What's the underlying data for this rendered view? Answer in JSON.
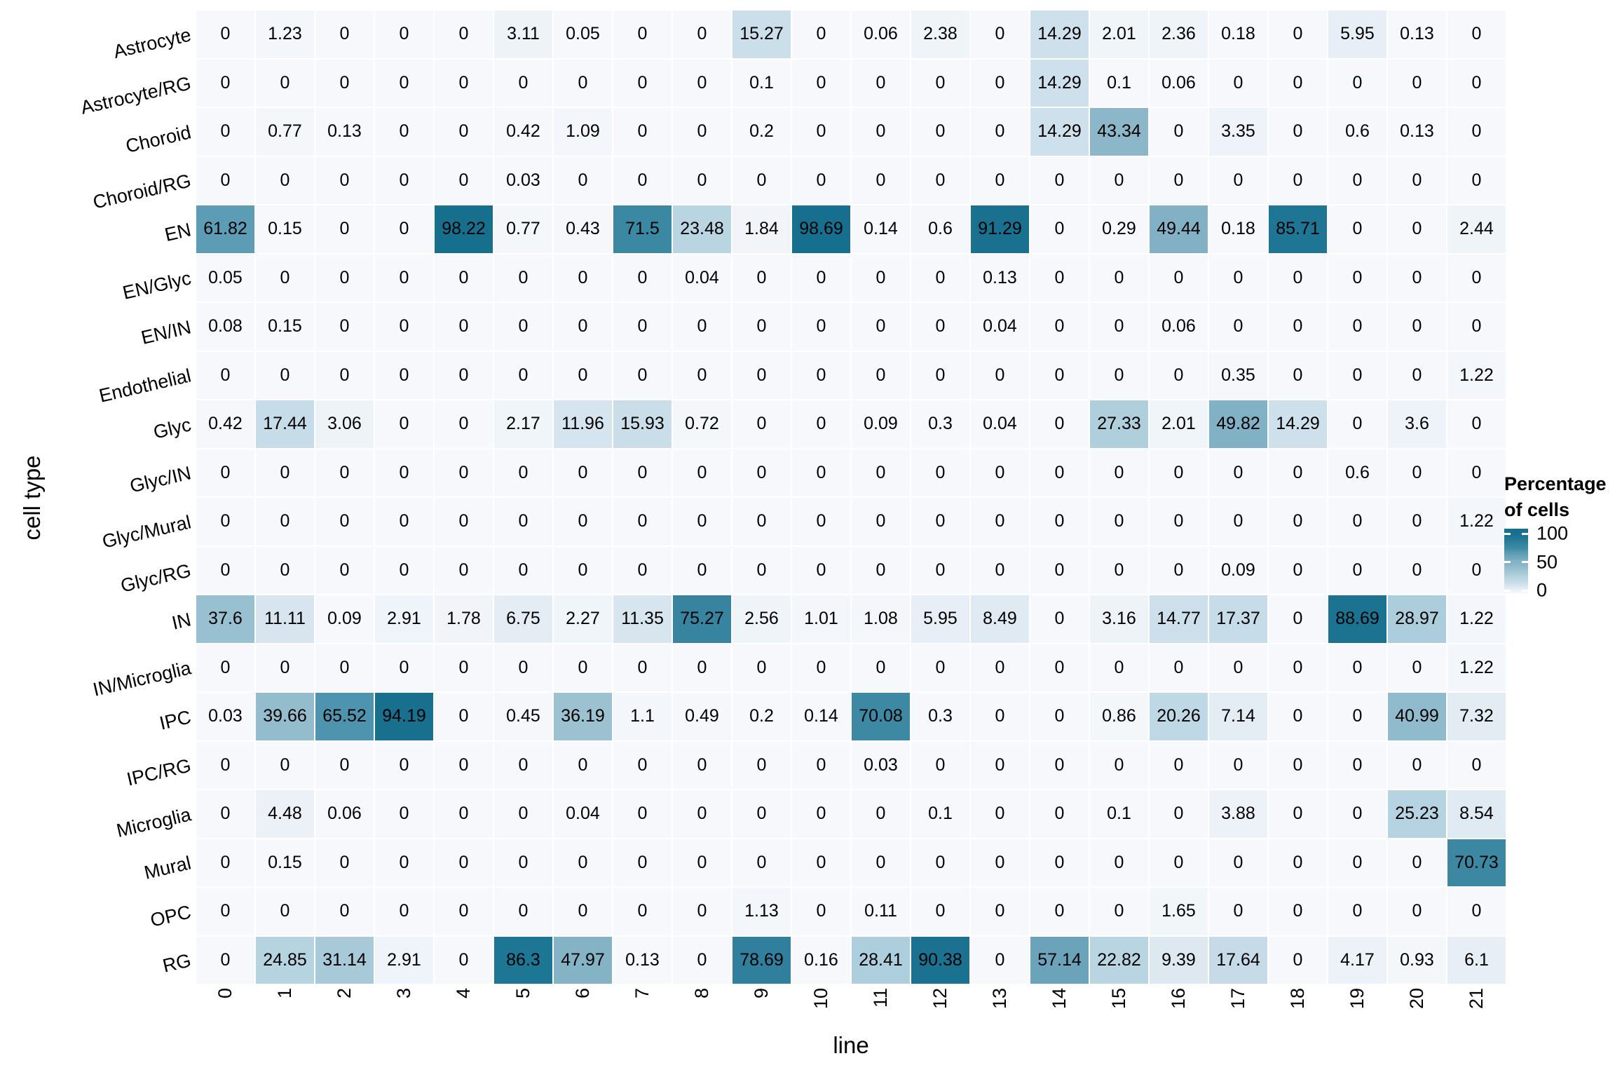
{
  "chart_data": {
    "type": "heatmap",
    "title": "",
    "xlabel": "line",
    "ylabel": "cell type",
    "x_categories": [
      "0",
      "1",
      "2",
      "3",
      "4",
      "5",
      "6",
      "7",
      "8",
      "9",
      "10",
      "11",
      "12",
      "13",
      "14",
      "15",
      "16",
      "17",
      "18",
      "19",
      "20",
      "21"
    ],
    "y_categories": [
      "Astrocyte",
      "Astrocyte/RG",
      "Choroid",
      "Choroid/RG",
      "EN",
      "EN/Glyc",
      "EN/IN",
      "Endothelial",
      "Glyc",
      "Glyc/IN",
      "Glyc/Mural",
      "Glyc/RG",
      "IN",
      "IN/Microglia",
      "IPC",
      "IPC/RG",
      "Microglia",
      "Mural",
      "OPC",
      "RG"
    ],
    "values": [
      [
        0,
        1.23,
        0,
        0,
        0,
        3.11,
        0.05,
        0,
        0,
        15.27,
        0,
        0.06,
        2.38,
        0,
        14.29,
        2.01,
        2.36,
        0.18,
        0,
        5.95,
        0.13,
        0
      ],
      [
        0,
        0,
        0,
        0,
        0,
        0,
        0,
        0,
        0,
        0.1,
        0,
        0,
        0,
        0,
        14.29,
        0.1,
        0.06,
        0,
        0,
        0,
        0,
        0
      ],
      [
        0,
        0.77,
        0.13,
        0,
        0,
        0.42,
        1.09,
        0,
        0,
        0.2,
        0,
        0,
        0,
        0,
        14.29,
        43.34,
        0,
        3.35,
        0,
        0.6,
        0.13,
        0
      ],
      [
        0,
        0,
        0,
        0,
        0,
        0.03,
        0,
        0,
        0,
        0,
        0,
        0,
        0,
        0,
        0,
        0,
        0,
        0,
        0,
        0,
        0,
        0
      ],
      [
        61.82,
        0.15,
        0,
        0,
        98.22,
        0.77,
        0.43,
        71.5,
        23.48,
        1.84,
        98.69,
        0.14,
        0.6,
        91.29,
        0,
        0.29,
        49.44,
        0.18,
        85.71,
        0,
        0,
        2.44
      ],
      [
        0.05,
        0,
        0,
        0,
        0,
        0,
        0,
        0,
        0.04,
        0,
        0,
        0,
        0,
        0.13,
        0,
        0,
        0,
        0,
        0,
        0,
        0,
        0
      ],
      [
        0.08,
        0.15,
        0,
        0,
        0,
        0,
        0,
        0,
        0,
        0,
        0,
        0,
        0,
        0.04,
        0,
        0,
        0.06,
        0,
        0,
        0,
        0,
        0
      ],
      [
        0,
        0,
        0,
        0,
        0,
        0,
        0,
        0,
        0,
        0,
        0,
        0,
        0,
        0,
        0,
        0,
        0,
        0.35,
        0,
        0,
        0,
        1.22
      ],
      [
        0.42,
        17.44,
        3.06,
        0,
        0,
        2.17,
        11.96,
        15.93,
        0.72,
        0,
        0,
        0.09,
        0.3,
        0.04,
        0,
        27.33,
        2.01,
        49.82,
        14.29,
        0,
        3.6,
        0
      ],
      [
        0,
        0,
        0,
        0,
        0,
        0,
        0,
        0,
        0,
        0,
        0,
        0,
        0,
        0,
        0,
        0,
        0,
        0,
        0,
        0.6,
        0,
        0
      ],
      [
        0,
        0,
        0,
        0,
        0,
        0,
        0,
        0,
        0,
        0,
        0,
        0,
        0,
        0,
        0,
        0,
        0,
        0,
        0,
        0,
        0,
        1.22
      ],
      [
        0,
        0,
        0,
        0,
        0,
        0,
        0,
        0,
        0,
        0,
        0,
        0,
        0,
        0,
        0,
        0,
        0,
        0.09,
        0,
        0,
        0,
        0
      ],
      [
        37.6,
        11.11,
        0.09,
        2.91,
        1.78,
        6.75,
        2.27,
        11.35,
        75.27,
        2.56,
        1.01,
        1.08,
        5.95,
        8.49,
        0,
        3.16,
        14.77,
        17.37,
        0,
        88.69,
        28.97,
        1.22
      ],
      [
        0,
        0,
        0,
        0,
        0,
        0,
        0,
        0,
        0,
        0,
        0,
        0,
        0,
        0,
        0,
        0,
        0,
        0,
        0,
        0,
        0,
        1.22
      ],
      [
        0.03,
        39.66,
        65.52,
        94.19,
        0,
        0.45,
        36.19,
        1.1,
        0.49,
        0.2,
        0.14,
        70.08,
        0.3,
        0,
        0,
        0.86,
        20.26,
        7.14,
        0,
        0,
        40.99,
        7.32
      ],
      [
        0,
        0,
        0,
        0,
        0,
        0,
        0,
        0,
        0,
        0,
        0,
        0.03,
        0,
        0,
        0,
        0,
        0,
        0,
        0,
        0,
        0,
        0
      ],
      [
        0,
        4.48,
        0.06,
        0,
        0,
        0,
        0.04,
        0,
        0,
        0,
        0,
        0,
        0.1,
        0,
        0,
        0.1,
        0,
        3.88,
        0,
        0,
        25.23,
        8.54
      ],
      [
        0,
        0.15,
        0,
        0,
        0,
        0,
        0,
        0,
        0,
        0,
        0,
        0,
        0,
        0,
        0,
        0,
        0,
        0,
        0,
        0,
        0,
        70.73
      ],
      [
        0,
        0,
        0,
        0,
        0,
        0,
        0,
        0,
        0,
        1.13,
        0,
        0.11,
        0,
        0,
        0,
        0,
        1.65,
        0,
        0,
        0,
        0,
        0
      ],
      [
        0,
        24.85,
        31.14,
        2.91,
        0,
        86.3,
        47.97,
        0.13,
        0,
        78.69,
        0.16,
        28.41,
        90.38,
        0,
        57.14,
        22.82,
        9.39,
        17.64,
        0,
        4.17,
        0.93,
        6.1
      ]
    ],
    "scale": {
      "min": 0,
      "max": 100
    },
    "legend": {
      "title_line1": "Percentage",
      "title_line2": "of cells",
      "tick_labels": [
        "100",
        "50",
        "0"
      ]
    },
    "colors": {
      "high": "#166f8e",
      "low": "#f7f8fb",
      "grid": "#ffffff",
      "text": "#000000",
      "anchors": [
        [
          0,
          [
            247,
            248,
            251
          ]
        ],
        [
          2,
          [
            240,
            245,
            249
          ]
        ],
        [
          4,
          [
            236,
            242,
            248
          ]
        ],
        [
          6,
          [
            231,
            238,
            245
          ]
        ],
        [
          10,
          [
            219,
            231,
            240
          ]
        ],
        [
          15,
          [
            204,
            223,
            234
          ]
        ],
        [
          20,
          [
            192,
            216,
            229
          ]
        ],
        [
          25,
          [
            182,
            211,
            224
          ]
        ],
        [
          30,
          [
            169,
            203,
            218
          ]
        ],
        [
          36,
          [
            156,
            194,
            210
          ]
        ],
        [
          40,
          [
            146,
            188,
            205
          ]
        ],
        [
          45,
          [
            136,
            181,
            199
          ]
        ],
        [
          50,
          [
            129,
            177,
            197
          ]
        ],
        [
          55,
          [
            113,
            166,
            189
          ]
        ],
        [
          62,
          [
            92,
            156,
            181
          ]
        ],
        [
          70,
          [
            61,
            137,
            164
          ]
        ],
        [
          75,
          [
            55,
            132,
            160
          ]
        ],
        [
          80,
          [
            45,
            125,
            154
          ]
        ],
        [
          86,
          [
            29,
            118,
            148
          ]
        ],
        [
          90,
          [
            27,
            114,
            144
          ]
        ],
        [
          94,
          [
            24,
            112,
            142
          ]
        ],
        [
          100,
          [
            22,
            111,
            142
          ]
        ]
      ]
    }
  }
}
